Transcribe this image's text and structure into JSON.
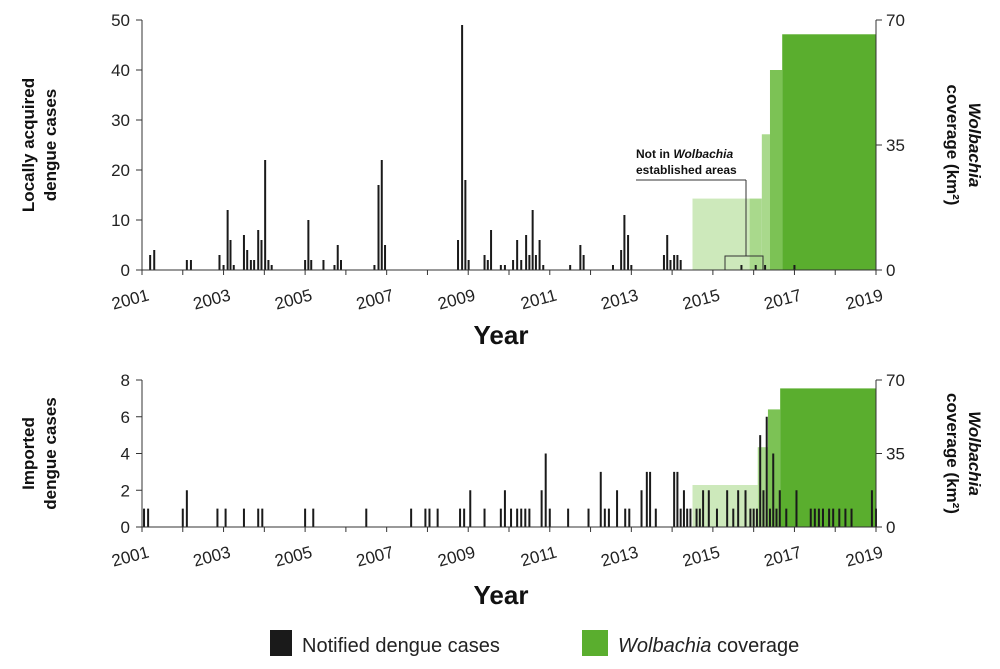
{
  "colors": {
    "cases": "#1a1a1a",
    "wolbachia_dark": "#5aae2e",
    "wolbachia_mid": "#7cc255",
    "wolbachia_light": "#a9d98c",
    "wolbachia_pale": "#cde9bb"
  },
  "legend": {
    "cases_label": "Notified dengue cases",
    "wolbachia_label_italic": "Wolbachia",
    "wolbachia_label_rest": " coverage"
  },
  "chart_data": [
    {
      "type": "bar",
      "name": "top",
      "xlabel": "Year",
      "ylabel": [
        "Locally acquired",
        "dengue cases"
      ],
      "ylabel_right_italic": "Wolbachia",
      "ylabel_right_rest": "coverage (km²)",
      "x_ticks": [
        "2001",
        "2003",
        "2005",
        "2007",
        "2009",
        "2011",
        "2013",
        "2015",
        "2017",
        "2019"
      ],
      "ylim": [
        0,
        50
      ],
      "y_ticks": [
        0,
        10,
        20,
        30,
        40,
        50
      ],
      "y2lim": [
        0,
        70
      ],
      "y2_ticks": [
        0,
        35,
        70
      ],
      "annotation": {
        "line1_pre": "Not in ",
        "line1_italic": "Wolbachia",
        "line2": "established areas"
      },
      "cases": [
        {
          "x": 2001.2,
          "y": 3
        },
        {
          "x": 2001.3,
          "y": 4
        },
        {
          "x": 2002.1,
          "y": 2
        },
        {
          "x": 2002.2,
          "y": 2
        },
        {
          "x": 2002.9,
          "y": 3
        },
        {
          "x": 2003.0,
          "y": 1
        },
        {
          "x": 2003.1,
          "y": 12
        },
        {
          "x": 2003.17,
          "y": 6
        },
        {
          "x": 2003.25,
          "y": 1
        },
        {
          "x": 2003.5,
          "y": 7
        },
        {
          "x": 2003.58,
          "y": 4
        },
        {
          "x": 2003.67,
          "y": 2
        },
        {
          "x": 2003.75,
          "y": 2
        },
        {
          "x": 2003.85,
          "y": 8
        },
        {
          "x": 2003.93,
          "y": 6
        },
        {
          "x": 2004.02,
          "y": 22
        },
        {
          "x": 2004.1,
          "y": 2
        },
        {
          "x": 2004.18,
          "y": 1
        },
        {
          "x": 2005.0,
          "y": 2
        },
        {
          "x": 2005.08,
          "y": 10
        },
        {
          "x": 2005.15,
          "y": 2
        },
        {
          "x": 2005.45,
          "y": 2
        },
        {
          "x": 2005.72,
          "y": 1
        },
        {
          "x": 2005.8,
          "y": 5
        },
        {
          "x": 2005.88,
          "y": 2
        },
        {
          "x": 2006.7,
          "y": 1
        },
        {
          "x": 2006.8,
          "y": 17
        },
        {
          "x": 2006.88,
          "y": 22
        },
        {
          "x": 2006.96,
          "y": 5
        },
        {
          "x": 2008.75,
          "y": 6
        },
        {
          "x": 2008.85,
          "y": 49
        },
        {
          "x": 2008.93,
          "y": 18
        },
        {
          "x": 2009.01,
          "y": 2
        },
        {
          "x": 2009.4,
          "y": 3
        },
        {
          "x": 2009.48,
          "y": 2
        },
        {
          "x": 2009.56,
          "y": 8
        },
        {
          "x": 2009.8,
          "y": 1
        },
        {
          "x": 2009.9,
          "y": 1
        },
        {
          "x": 2010.1,
          "y": 2
        },
        {
          "x": 2010.2,
          "y": 6
        },
        {
          "x": 2010.3,
          "y": 2
        },
        {
          "x": 2010.42,
          "y": 7
        },
        {
          "x": 2010.5,
          "y": 3
        },
        {
          "x": 2010.58,
          "y": 12
        },
        {
          "x": 2010.66,
          "y": 3
        },
        {
          "x": 2010.75,
          "y": 6
        },
        {
          "x": 2010.84,
          "y": 1
        },
        {
          "x": 2011.5,
          "y": 1
        },
        {
          "x": 2011.75,
          "y": 5
        },
        {
          "x": 2011.83,
          "y": 3
        },
        {
          "x": 2012.55,
          "y": 1
        },
        {
          "x": 2012.75,
          "y": 4
        },
        {
          "x": 2012.83,
          "y": 11
        },
        {
          "x": 2012.92,
          "y": 7
        },
        {
          "x": 2013.0,
          "y": 1
        },
        {
          "x": 2013.8,
          "y": 3
        },
        {
          "x": 2013.88,
          "y": 7
        },
        {
          "x": 2013.96,
          "y": 2
        },
        {
          "x": 2014.05,
          "y": 3
        },
        {
          "x": 2014.13,
          "y": 3
        },
        {
          "x": 2014.21,
          "y": 2
        },
        {
          "x": 2015.7,
          "y": 1
        },
        {
          "x": 2016.05,
          "y": 1
        },
        {
          "x": 2016.28,
          "y": 1
        },
        {
          "x": 2017.0,
          "y": 1
        }
      ],
      "coverage": [
        {
          "x0": 2014.5,
          "x1": 2015.9,
          "y": 20,
          "shade": "pale"
        },
        {
          "x0": 2015.9,
          "x1": 2016.2,
          "y": 20,
          "shade": "light"
        },
        {
          "x0": 2016.2,
          "x1": 2016.4,
          "y": 38,
          "shade": "light"
        },
        {
          "x0": 2016.4,
          "x1": 2016.7,
          "y": 56,
          "shade": "mid"
        },
        {
          "x0": 2016.7,
          "x1": 2019.0,
          "y": 66,
          "shade": "dark"
        }
      ]
    },
    {
      "type": "bar",
      "name": "bottom",
      "xlabel": "Year",
      "ylabel": [
        "Imported",
        "dengue cases"
      ],
      "ylabel_right_italic": "Wolbachia",
      "ylabel_right_rest": "coverage (km²)",
      "x_ticks": [
        "2001",
        "2003",
        "2005",
        "2007",
        "2009",
        "2011",
        "2013",
        "2015",
        "2017",
        "2019"
      ],
      "ylim": [
        0,
        8
      ],
      "y_ticks": [
        0,
        2,
        4,
        6,
        8
      ],
      "y2lim": [
        0,
        70
      ],
      "y2_ticks": [
        0,
        35,
        70
      ],
      "cases": [
        {
          "x": 2001.05,
          "y": 1
        },
        {
          "x": 2001.15,
          "y": 1
        },
        {
          "x": 2002.0,
          "y": 1
        },
        {
          "x": 2002.1,
          "y": 2
        },
        {
          "x": 2002.85,
          "y": 1
        },
        {
          "x": 2003.05,
          "y": 1
        },
        {
          "x": 2003.5,
          "y": 1
        },
        {
          "x": 2003.85,
          "y": 1
        },
        {
          "x": 2003.95,
          "y": 1
        },
        {
          "x": 2005.0,
          "y": 1
        },
        {
          "x": 2005.2,
          "y": 1
        },
        {
          "x": 2006.5,
          "y": 1
        },
        {
          "x": 2007.6,
          "y": 1
        },
        {
          "x": 2007.95,
          "y": 1
        },
        {
          "x": 2008.05,
          "y": 1
        },
        {
          "x": 2008.25,
          "y": 1
        },
        {
          "x": 2008.8,
          "y": 1
        },
        {
          "x": 2008.9,
          "y": 1
        },
        {
          "x": 2009.05,
          "y": 2
        },
        {
          "x": 2009.4,
          "y": 1
        },
        {
          "x": 2009.8,
          "y": 1
        },
        {
          "x": 2009.9,
          "y": 2
        },
        {
          "x": 2010.05,
          "y": 1
        },
        {
          "x": 2010.2,
          "y": 1
        },
        {
          "x": 2010.3,
          "y": 1
        },
        {
          "x": 2010.4,
          "y": 1
        },
        {
          "x": 2010.5,
          "y": 1
        },
        {
          "x": 2010.8,
          "y": 2
        },
        {
          "x": 2010.9,
          "y": 4
        },
        {
          "x": 2011.0,
          "y": 1
        },
        {
          "x": 2011.45,
          "y": 1
        },
        {
          "x": 2011.95,
          "y": 1
        },
        {
          "x": 2012.25,
          "y": 3
        },
        {
          "x": 2012.35,
          "y": 1
        },
        {
          "x": 2012.45,
          "y": 1
        },
        {
          "x": 2012.65,
          "y": 2
        },
        {
          "x": 2012.85,
          "y": 1
        },
        {
          "x": 2012.95,
          "y": 1
        },
        {
          "x": 2013.25,
          "y": 2
        },
        {
          "x": 2013.38,
          "y": 3
        },
        {
          "x": 2013.46,
          "y": 3
        },
        {
          "x": 2013.6,
          "y": 1
        },
        {
          "x": 2014.05,
          "y": 3
        },
        {
          "x": 2014.13,
          "y": 3
        },
        {
          "x": 2014.21,
          "y": 1
        },
        {
          "x": 2014.29,
          "y": 2
        },
        {
          "x": 2014.37,
          "y": 1
        },
        {
          "x": 2014.45,
          "y": 1
        },
        {
          "x": 2014.6,
          "y": 1
        },
        {
          "x": 2014.68,
          "y": 1
        },
        {
          "x": 2014.76,
          "y": 2
        },
        {
          "x": 2014.9,
          "y": 2
        },
        {
          "x": 2015.1,
          "y": 1
        },
        {
          "x": 2015.35,
          "y": 2
        },
        {
          "x": 2015.5,
          "y": 1
        },
        {
          "x": 2015.62,
          "y": 2
        },
        {
          "x": 2015.8,
          "y": 2
        },
        {
          "x": 2015.92,
          "y": 1
        },
        {
          "x": 2016.0,
          "y": 1
        },
        {
          "x": 2016.08,
          "y": 1
        },
        {
          "x": 2016.16,
          "y": 5
        },
        {
          "x": 2016.24,
          "y": 2
        },
        {
          "x": 2016.32,
          "y": 6
        },
        {
          "x": 2016.4,
          "y": 1
        },
        {
          "x": 2016.48,
          "y": 4
        },
        {
          "x": 2016.56,
          "y": 1
        },
        {
          "x": 2016.64,
          "y": 2
        },
        {
          "x": 2016.8,
          "y": 1
        },
        {
          "x": 2017.05,
          "y": 2
        },
        {
          "x": 2017.4,
          "y": 1
        },
        {
          "x": 2017.5,
          "y": 1
        },
        {
          "x": 2017.6,
          "y": 1
        },
        {
          "x": 2017.7,
          "y": 1
        },
        {
          "x": 2017.85,
          "y": 1
        },
        {
          "x": 2017.95,
          "y": 1
        },
        {
          "x": 2018.1,
          "y": 1
        },
        {
          "x": 2018.25,
          "y": 1
        },
        {
          "x": 2018.4,
          "y": 1
        },
        {
          "x": 2018.9,
          "y": 2
        },
        {
          "x": 2019.0,
          "y": 1
        }
      ],
      "coverage": [
        {
          "x0": 2014.5,
          "x1": 2016.1,
          "y": 20,
          "shade": "pale"
        },
        {
          "x0": 2016.1,
          "x1": 2016.35,
          "y": 38,
          "shade": "light"
        },
        {
          "x0": 2016.35,
          "x1": 2016.65,
          "y": 56,
          "shade": "mid"
        },
        {
          "x0": 2016.65,
          "x1": 2019.0,
          "y": 66,
          "shade": "dark"
        }
      ]
    }
  ]
}
